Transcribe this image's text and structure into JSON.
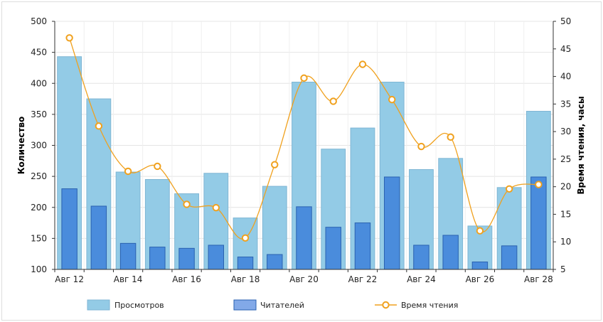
{
  "chart_data": {
    "type": "bar",
    "categories": [
      "Авг 12",
      "Авг 13",
      "Авг 14",
      "Авг 15",
      "Авг 16",
      "Авг 17",
      "Авг 18",
      "Авг 19",
      "Авг 20",
      "Авг 21",
      "Авг 22",
      "Авг 23",
      "Авг 24",
      "Авг 25",
      "Авг 26",
      "Авг 27",
      "Авг 28"
    ],
    "x_tick_labels": [
      "Авг 12",
      "Авг 14",
      "Авг 16",
      "Авг 18",
      "Авг 20",
      "Авг 22",
      "Авг 24",
      "Авг 26",
      "Авг 28"
    ],
    "series": [
      {
        "name": "Просмотров",
        "axis": "left",
        "kind": "bar",
        "color": "#93cbe6",
        "values": [
          443,
          375,
          257,
          245,
          222,
          255,
          183,
          234,
          402,
          294,
          328,
          402,
          261,
          279,
          170,
          232,
          355
        ]
      },
      {
        "name": "Читателей",
        "axis": "left",
        "kind": "bar",
        "color": "#4a8cdc",
        "values": [
          230,
          202,
          142,
          136,
          134,
          139,
          120,
          124,
          201,
          168,
          175,
          249,
          139,
          155,
          112,
          138,
          249
        ]
      },
      {
        "name": "Время чтения",
        "axis": "right",
        "kind": "line",
        "color": "#f0a11e",
        "values": [
          47,
          31,
          22.8,
          23.7,
          16.8,
          16.2,
          10.7,
          24,
          39.7,
          35.5,
          42.2,
          35.8,
          27.3,
          29,
          12,
          19.6,
          20.4
        ]
      }
    ],
    "y_left": {
      "label": "Количество",
      "min": 100,
      "max": 500,
      "ticks": [
        100,
        150,
        200,
        250,
        300,
        350,
        400,
        450,
        500
      ]
    },
    "y_right": {
      "label": "Время чтения, часы",
      "min": 5,
      "max": 50,
      "ticks": [
        5,
        10,
        15,
        20,
        25,
        30,
        35,
        40,
        45,
        50
      ]
    },
    "legend": {
      "position": "bottom",
      "items": [
        "Просмотров",
        "Читателей",
        "Время чтения"
      ]
    },
    "grid": true
  }
}
